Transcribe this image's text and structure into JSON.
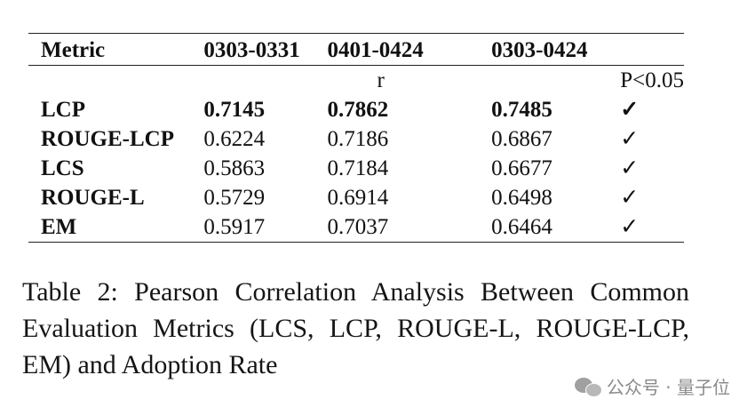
{
  "table": {
    "columns": [
      "Metric",
      "0303-0331",
      "0401-0424",
      "0303-0424",
      ""
    ],
    "subheader": {
      "r_label": "r",
      "p_label": "P<0.05"
    },
    "rows": [
      {
        "metric": "LCP",
        "v1": "0.7145",
        "v2": "0.7862",
        "v3": "0.7485",
        "sig": "✓",
        "bold": true
      },
      {
        "metric": "ROUGE-LCP",
        "v1": "0.6224",
        "v2": "0.7186",
        "v3": "0.6867",
        "sig": "✓",
        "bold": false
      },
      {
        "metric": "LCS",
        "v1": "0.5863",
        "v2": "0.7184",
        "v3": "0.6677",
        "sig": "✓",
        "bold": false
      },
      {
        "metric": "ROUGE-L",
        "v1": "0.5729",
        "v2": "0.6914",
        "v3": "0.6498",
        "sig": "✓",
        "bold": false
      },
      {
        "metric": "EM",
        "v1": "0.5917",
        "v2": "0.7037",
        "v3": "0.6464",
        "sig": "✓",
        "bold": false
      }
    ]
  },
  "caption": "Table 2:  Pearson Correlation Analysis Between Common Evaluation Metrics (LCS, LCP, ROUGE-L, ROUGE-LCP, EM) and Adoption Rate",
  "watermark": {
    "text": "公众号 · 量子位",
    "icon": "wechat-icon"
  }
}
